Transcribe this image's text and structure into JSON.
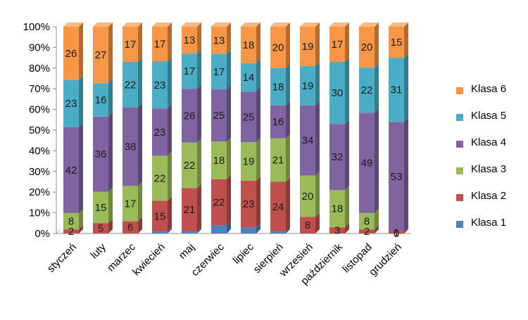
{
  "chart_data": {
    "type": "bar",
    "stacked": "percent",
    "categories": [
      "styczeń",
      "luty",
      "marzec",
      "kwiecień",
      "maj",
      "czerwiec",
      "lipiec",
      "sierpień",
      "wrzesień",
      "październik",
      "listopad",
      "grudzień"
    ],
    "series": [
      {
        "name": "Klasa 1",
        "color": "#4f81bd",
        "values": [
          0,
          0,
          0,
          1,
          1,
          4,
          3,
          1,
          0,
          0,
          0,
          0
        ],
        "labels": [
          "",
          "",
          "",
          "",
          "",
          "",
          "",
          "",
          "",
          "",
          "",
          "0"
        ]
      },
      {
        "name": "Klasa 2",
        "color": "#c0504d",
        "values": [
          2,
          5,
          6,
          15,
          21,
          22,
          23,
          24,
          8,
          3,
          2,
          1
        ],
        "labels": [
          "2",
          "5",
          "6",
          "15",
          "21",
          "22",
          "23",
          "24",
          "8",
          "3",
          "2",
          "1"
        ]
      },
      {
        "name": "Klasa 3",
        "color": "#9bbb59",
        "values": [
          8,
          15,
          17,
          22,
          22,
          18,
          19,
          21,
          20,
          18,
          8,
          0
        ],
        "labels": [
          "8",
          "15",
          "17",
          "22",
          "22",
          "18",
          "19",
          "21",
          "20",
          "18",
          "8",
          ""
        ]
      },
      {
        "name": "Klasa 4",
        "color": "#8064a2",
        "values": [
          42,
          36,
          38,
          23,
          26,
          25,
          25,
          16,
          34,
          32,
          49,
          53
        ],
        "labels": [
          "42",
          "36",
          "38",
          "23",
          "26",
          "25",
          "25",
          "16",
          "34",
          "32",
          "49",
          "53"
        ]
      },
      {
        "name": "Klasa 5",
        "color": "#4bacc6",
        "values": [
          23,
          16,
          22,
          23,
          17,
          17,
          14,
          18,
          19,
          30,
          22,
          31
        ],
        "labels": [
          "23",
          "16",
          "22",
          "23",
          "17",
          "17",
          "14",
          "18",
          "19",
          "30",
          "22",
          "31"
        ]
      },
      {
        "name": "Klasa 6",
        "color": "#f79646",
        "values": [
          26,
          27,
          17,
          17,
          13,
          13,
          18,
          20,
          19,
          17,
          20,
          15
        ],
        "labels": [
          "26",
          "27",
          "17",
          "17",
          "13",
          "13",
          "18",
          "20",
          "19",
          "17",
          "20",
          "15"
        ]
      }
    ],
    "y_ticks": [
      "0%",
      "10%",
      "20%",
      "30%",
      "40%",
      "50%",
      "60%",
      "70%",
      "80%",
      "90%",
      "100%"
    ],
    "ylim": [
      0,
      100
    ],
    "grid": false,
    "legend_position": "right",
    "title": "",
    "xlabel": "",
    "ylabel": ""
  }
}
